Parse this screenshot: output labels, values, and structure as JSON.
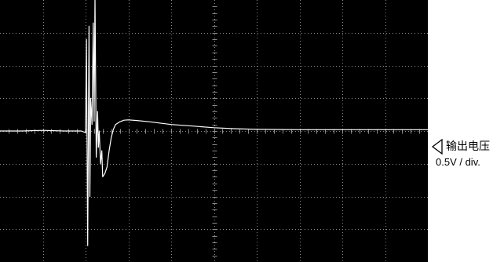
{
  "chart_data": {
    "type": "line",
    "title": "",
    "xlabel": "",
    "ylabel": "",
    "grid": true,
    "x_divisions": 10,
    "y_divisions": 8,
    "xlim": [
      0,
      10
    ],
    "ylim": [
      -4,
      4
    ],
    "y_unit_note": "vertical axis in divisions, 0.5 V per division",
    "series": [
      {
        "name": "输出电压",
        "color": "#ffffff",
        "x": [
          0.0,
          0.5,
          1.0,
          1.5,
          1.9,
          2.0,
          2.02,
          2.05,
          2.08,
          2.1,
          2.12,
          2.15,
          2.18,
          2.2,
          2.22,
          2.25,
          2.28,
          2.3,
          2.32,
          2.35,
          2.38,
          2.4,
          2.45,
          2.5,
          2.55,
          2.6,
          2.65,
          2.7,
          2.8,
          2.9,
          3.0,
          3.2,
          3.5,
          4.0,
          4.5,
          5.0,
          5.5,
          6.0,
          7.0,
          8.0,
          9.0,
          10.0
        ],
        "y": [
          0.0,
          0.0,
          0.02,
          0.0,
          0.0,
          -0.05,
          2.8,
          -3.5,
          3.2,
          -2.0,
          1.0,
          0.2,
          3.3,
          0.3,
          4.1,
          -0.8,
          0.6,
          -0.5,
          0.0,
          -1.0,
          -0.6,
          -1.4,
          -1.3,
          -1.1,
          -0.6,
          -0.2,
          0.05,
          0.2,
          0.28,
          0.33,
          0.34,
          0.32,
          0.28,
          0.2,
          0.15,
          0.1,
          0.07,
          0.05,
          0.04,
          0.04,
          0.04,
          0.04
        ]
      }
    ]
  },
  "channel": {
    "name": "输出电压",
    "scale": "0.5V / div."
  },
  "colors": {
    "screen_bg": "#000000",
    "trace": "#ffffff",
    "grid": "#8a8a8a"
  }
}
